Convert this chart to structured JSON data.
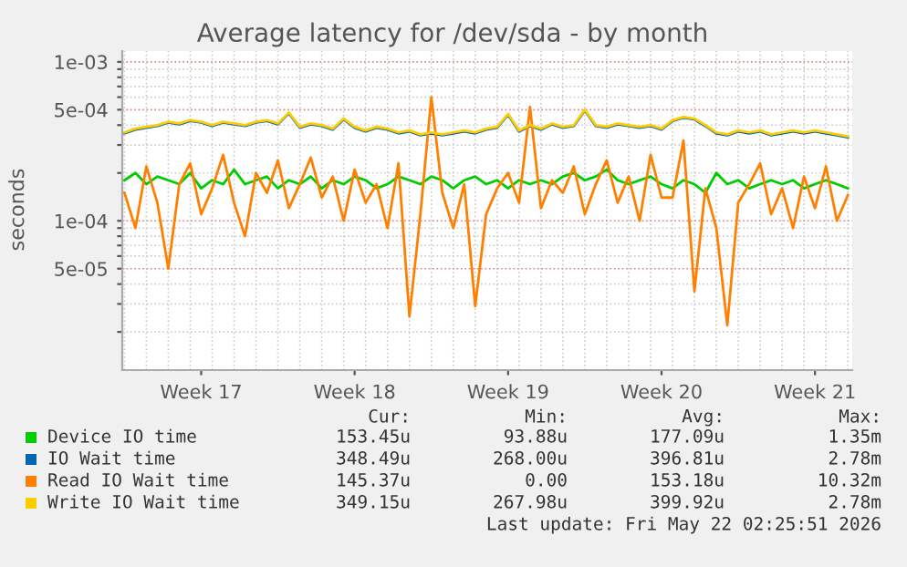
{
  "chart_data": {
    "type": "line",
    "title": "Average latency for /dev/sda - by month",
    "ylabel": "seconds",
    "categories": [
      null,
      null,
      null,
      null,
      null,
      null,
      null,
      "Week 17",
      null,
      null,
      null,
      null,
      null,
      null,
      null,
      null,
      null,
      null,
      null,
      null,
      null,
      "Week 18",
      null,
      null,
      null,
      null,
      null,
      null,
      null,
      null,
      null,
      null,
      null,
      null,
      null,
      "Week 19",
      null,
      null,
      null,
      null,
      null,
      null,
      null,
      null,
      null,
      null,
      null,
      null,
      null,
      "Week 20",
      null,
      null,
      null,
      null,
      null,
      null,
      null,
      null,
      null,
      null,
      null,
      null,
      null,
      "Week 21",
      null,
      null,
      null
    ],
    "series": [
      {
        "name": "Device IO time",
        "color": "#00cc00",
        "values": [
          0.00018,
          0.0002,
          0.00017,
          0.00019,
          0.00018,
          0.00017,
          0.0002,
          0.00016,
          0.00018,
          0.00017,
          0.00021,
          0.00017,
          0.00018,
          0.00019,
          0.00016,
          0.00018,
          0.00017,
          0.00019,
          0.00016,
          0.00018,
          0.00017,
          0.00019,
          0.00018,
          0.00016,
          0.00017,
          0.00019,
          0.00018,
          0.00017,
          0.00019,
          0.00018,
          0.00016,
          0.00018,
          0.00019,
          0.00017,
          0.00018,
          0.00016,
          0.00018,
          0.00017,
          0.00018,
          0.00017,
          0.00019,
          0.0002,
          0.00018,
          0.00019,
          0.00021,
          0.00018,
          0.00017,
          0.00018,
          0.00019,
          0.00017,
          0.00016,
          0.00018,
          0.00017,
          0.00015,
          0.0002,
          0.00017,
          0.00018,
          0.00016,
          0.00017,
          0.00018,
          0.00017,
          0.00018,
          0.00016,
          0.00017,
          0.00018,
          0.00017,
          0.00016
        ]
      },
      {
        "name": "IO Wait time",
        "color": "#0066b3",
        "values": [
          0.000355,
          0.000375,
          0.000385,
          0.000395,
          0.000415,
          0.000405,
          0.000425,
          0.000415,
          0.000395,
          0.000415,
          0.000405,
          0.000395,
          0.000415,
          0.000425,
          0.000405,
          0.000475,
          0.000385,
          0.000405,
          0.000395,
          0.000375,
          0.000435,
          0.000385,
          0.000365,
          0.000385,
          0.000375,
          0.000355,
          0.000365,
          0.000345,
          0.000355,
          0.000345,
          0.000355,
          0.000365,
          0.000355,
          0.000375,
          0.000385,
          0.000465,
          0.000365,
          0.000395,
          0.000375,
          0.000405,
          0.000385,
          0.000395,
          0.000495,
          0.000395,
          0.000385,
          0.000405,
          0.000395,
          0.000385,
          0.000395,
          0.000375,
          0.000425,
          0.000445,
          0.000435,
          0.000395,
          0.000355,
          0.000345,
          0.000365,
          0.000355,
          0.000365,
          0.000345,
          0.000355,
          0.000365,
          0.000355,
          0.000365,
          0.000355,
          0.000345,
          0.000335
        ]
      },
      {
        "name": "Read IO Wait time",
        "color": "#ff8000",
        "values": [
          0.00015,
          9e-05,
          0.00022,
          0.00013,
          5e-05,
          0.00017,
          0.00023,
          0.00011,
          0.00016,
          0.00026,
          0.00013,
          8e-05,
          0.0002,
          0.00015,
          0.00024,
          0.00012,
          0.00017,
          0.00025,
          0.00014,
          0.00019,
          0.0001,
          0.00021,
          0.00013,
          0.00017,
          9e-05,
          0.00023,
          2.5e-05,
          0.00011,
          0.0006,
          0.00015,
          9e-05,
          0.00017,
          2.9e-05,
          0.00011,
          0.00016,
          0.0002,
          0.00013,
          0.00052,
          0.00012,
          0.00018,
          0.00015,
          0.00022,
          0.00011,
          0.00017,
          0.00024,
          0.00013,
          0.00019,
          0.0001,
          0.00026,
          0.00014,
          0.00014,
          0.00032,
          3.6e-05,
          0.00016,
          9e-05,
          2.2e-05,
          0.00013,
          0.00017,
          0.00023,
          0.00011,
          0.00016,
          9e-05,
          0.00019,
          0.00012,
          0.00022,
          0.0001,
          0.000145
        ]
      },
      {
        "name": "Write IO Wait time",
        "color": "#ffcc00",
        "values": [
          0.00036,
          0.00038,
          0.00039,
          0.0004,
          0.00042,
          0.00041,
          0.00043,
          0.00042,
          0.0004,
          0.00042,
          0.00041,
          0.0004,
          0.00042,
          0.00043,
          0.00041,
          0.00048,
          0.00039,
          0.00041,
          0.0004,
          0.00038,
          0.00044,
          0.00039,
          0.00037,
          0.00039,
          0.00038,
          0.00036,
          0.00037,
          0.00035,
          0.00036,
          0.00035,
          0.00036,
          0.00037,
          0.00036,
          0.00038,
          0.00039,
          0.00047,
          0.00037,
          0.0004,
          0.00038,
          0.00041,
          0.00039,
          0.0004,
          0.0005,
          0.0004,
          0.00039,
          0.00041,
          0.0004,
          0.00039,
          0.0004,
          0.00038,
          0.00043,
          0.00045,
          0.00044,
          0.0004,
          0.00036,
          0.00035,
          0.00037,
          0.00036,
          0.00037,
          0.00035,
          0.00036,
          0.00037,
          0.00036,
          0.00037,
          0.00036,
          0.00035,
          0.00034
        ]
      }
    ],
    "log": "y",
    "ylim": [
      1.15e-05,
      0.00117
    ],
    "yticks": [
      {
        "value": 0.001,
        "label": "1e-03"
      },
      {
        "value": 0.0005,
        "label": "5e-04"
      },
      {
        "value": 0.0001,
        "label": "1e-04"
      },
      {
        "value": 5e-05,
        "label": "5e-05"
      },
      {
        "value": 2e-05,
        "label": null
      },
      {
        "value": 3e-05,
        "label": null
      },
      {
        "value": 4e-05,
        "label": null
      },
      {
        "value": 6e-05,
        "label": null
      },
      {
        "value": 7e-05,
        "label": null
      },
      {
        "value": 8e-05,
        "label": null
      },
      {
        "value": 9e-05,
        "label": null
      },
      {
        "value": 0.0002,
        "label": null
      },
      {
        "value": 0.0003,
        "label": null
      },
      {
        "value": 0.0004,
        "label": null
      },
      {
        "value": 0.0006,
        "label": null
      },
      {
        "value": 0.0007,
        "label": null
      },
      {
        "value": 0.0008,
        "label": null
      },
      {
        "value": 0.0009,
        "label": null
      }
    ],
    "grid": true,
    "legend": "bottom",
    "marker": "none",
    "line_style": "solid",
    "annotations": [
      "Cur:",
      "Min:",
      "Avg:",
      "Max:",
      "153.45u",
      "93.88u",
      "177.09u",
      "1.35m",
      "348.49u",
      "268.00u",
      "396.81u",
      "2.78m",
      "145.37u",
      "0.00",
      "153.18u",
      "10.32m",
      "349.15u",
      "267.98u",
      "399.92u",
      "2.78m",
      "Last update: Fri May 22 02:25:51 2026"
    ]
  }
}
